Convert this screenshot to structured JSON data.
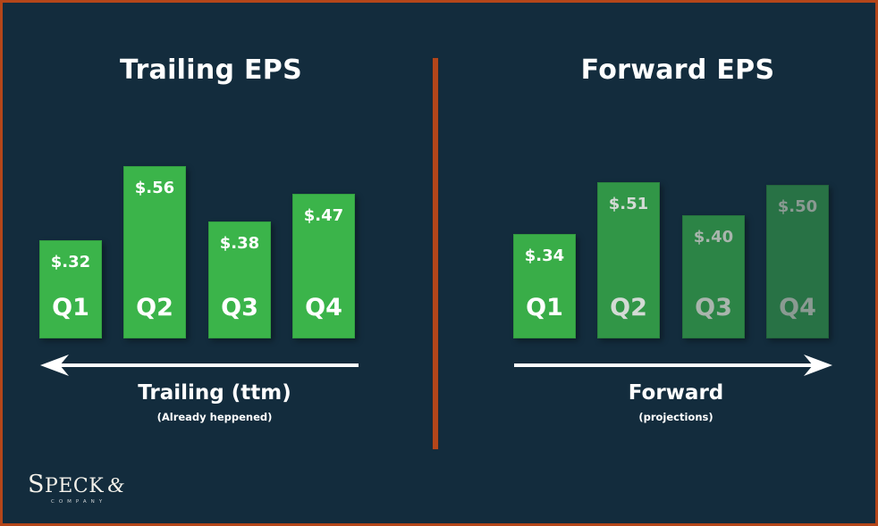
{
  "panels": {
    "trailing": {
      "title": "Trailing EPS",
      "caption": "Trailing (ttm)",
      "subcaption": "(Already heppened)",
      "arrow_direction": "left",
      "bars": [
        {
          "quarter": "Q1",
          "label": "$.32",
          "value": 0.32,
          "color": "#3bb44a",
          "text_color": "#ffffff"
        },
        {
          "quarter": "Q2",
          "label": "$.56",
          "value": 0.56,
          "color": "#3bb44a",
          "text_color": "#ffffff"
        },
        {
          "quarter": "Q3",
          "label": "$.38",
          "value": 0.38,
          "color": "#3bb44a",
          "text_color": "#ffffff"
        },
        {
          "quarter": "Q4",
          "label": "$.47",
          "value": 0.47,
          "color": "#3bb44a",
          "text_color": "#ffffff"
        }
      ]
    },
    "forward": {
      "title": "Forward EPS",
      "caption": "Forward",
      "subcaption": "(projections)",
      "arrow_direction": "right",
      "bars": [
        {
          "quarter": "Q1",
          "label": "$.34",
          "value": 0.34,
          "color": "#39ad48",
          "text_color": "#ffffff"
        },
        {
          "quarter": "Q2",
          "label": "$.51",
          "value": 0.51,
          "color": "#319647",
          "text_color": "#d3dad5"
        },
        {
          "quarter": "Q3",
          "label": "$.40",
          "value": 0.4,
          "color": "#2c8446",
          "text_color": "#a9b5ad"
        },
        {
          "quarter": "Q4",
          "label": "$.50",
          "value": 0.5,
          "color": "#287245",
          "text_color": "#8a9a92"
        }
      ]
    }
  },
  "logo": {
    "name_first": "S",
    "name_rest": "PECK",
    "ampersand": "&",
    "subtitle": "COMPANY"
  },
  "colors": {
    "background": "#132c3d",
    "border": "#b4461a",
    "divider": "#b4461a"
  },
  "chart_data": [
    {
      "type": "bar",
      "title": "Trailing EPS",
      "categories": [
        "Q1",
        "Q2",
        "Q3",
        "Q4"
      ],
      "values": [
        0.32,
        0.56,
        0.38,
        0.47
      ],
      "data_labels": [
        "$.32",
        "$.56",
        "$.38",
        "$.47"
      ],
      "xlabel": "Trailing (ttm)",
      "annotation": "(Already heppened)",
      "ylabel": "",
      "grid": false,
      "legend": null
    },
    {
      "type": "bar",
      "title": "Forward EPS",
      "categories": [
        "Q1",
        "Q2",
        "Q3",
        "Q4"
      ],
      "values": [
        0.34,
        0.51,
        0.4,
        0.5
      ],
      "data_labels": [
        "$.34",
        "$.51",
        "$.40",
        "$.50"
      ],
      "xlabel": "Forward",
      "annotation": "(projections)",
      "ylabel": "",
      "grid": false,
      "legend": null
    }
  ]
}
